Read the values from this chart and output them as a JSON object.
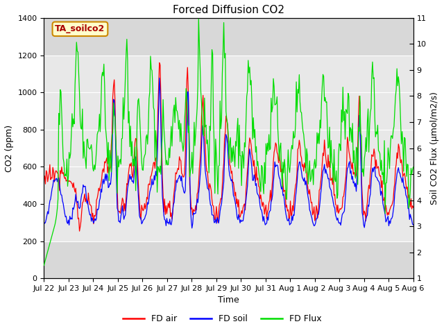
{
  "title": "Forced Diffusion CO2",
  "xlabel": "Time",
  "ylabel_left": "CO2 (ppm)",
  "ylabel_right": "Soil CO2 Flux (μmol/m2/s)",
  "legend_label": "TA_soilco2",
  "ylim_left": [
    0,
    1400
  ],
  "ylim_right": [
    1.0,
    11.0
  ],
  "yticks_left": [
    0,
    200,
    400,
    600,
    800,
    1000,
    1200,
    1400
  ],
  "yticks_right": [
    1.0,
    2.0,
    3.0,
    4.0,
    5.0,
    6.0,
    7.0,
    8.0,
    9.0,
    10.0,
    11.0
  ],
  "plot_bg_color": "#d8d8d8",
  "shaded_band": [
    200,
    1200
  ],
  "shaded_band_color": "#e8e8e8",
  "series": {
    "fd_air_color": "#ff0000",
    "fd_soil_color": "#0000ff",
    "fd_flux_color": "#00dd00"
  },
  "x_tick_labels": [
    "Jul 22",
    "Jul 23",
    "Jul 24",
    "Jul 25",
    "Jul 26",
    "Jul 27",
    "Jul 28",
    "Jul 29",
    "Jul 30",
    "Jul 31",
    "Aug 1",
    "Aug 2",
    "Aug 3",
    "Aug 4",
    "Aug 5",
    "Aug 6"
  ],
  "n_points": 500,
  "annotation_text_color": "#aa0000",
  "annotation_bg": "#ffffcc",
  "annotation_edge": "#cc8800"
}
